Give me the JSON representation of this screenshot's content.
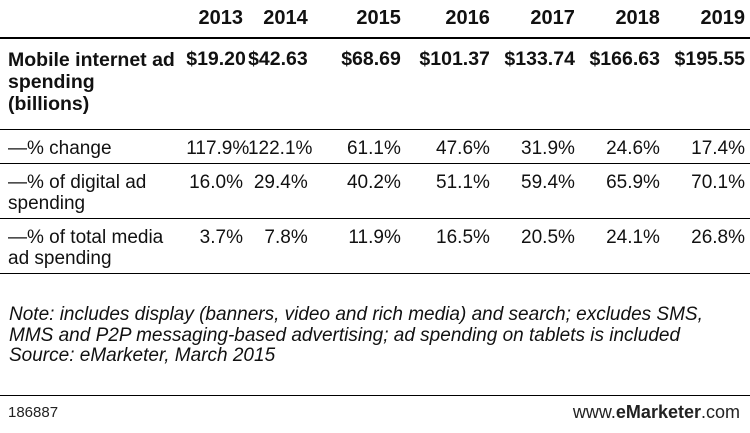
{
  "chart_data": {
    "type": "table",
    "columns": [
      "2013",
      "2014",
      "2015",
      "2016",
      "2017",
      "2018",
      "2019"
    ],
    "rows": [
      {
        "label": "Mobile internet ad spending (billions)",
        "values": [
          "$19.20",
          "$42.63",
          "$68.69",
          "$101.37",
          "$133.74",
          "$166.63",
          "$195.55"
        ]
      },
      {
        "label": "—% change",
        "values": [
          "117.9%",
          "122.1%",
          "61.1%",
          "47.6%",
          "31.9%",
          "24.6%",
          "17.4%"
        ]
      },
      {
        "label": "—% of digital ad spending",
        "values": [
          "16.0%",
          "29.4%",
          "40.2%",
          "51.1%",
          "59.4%",
          "65.9%",
          "70.1%"
        ]
      },
      {
        "label": "—% of total media ad spending",
        "values": [
          "3.7%",
          "7.8%",
          "11.9%",
          "16.5%",
          "20.5%",
          "24.1%",
          "26.8%"
        ]
      }
    ],
    "note": "Note: includes display (banners, video and rich media) and search; excludes SMS, MMS and P2P messaging-based advertising; ad spending on tablets is included",
    "source": "Source: eMarketer, March 2015"
  },
  "footer": {
    "chart_id": "186887",
    "brand_prefix": "www.",
    "brand_bold": "eMarketer",
    "brand_suffix": ".com"
  }
}
